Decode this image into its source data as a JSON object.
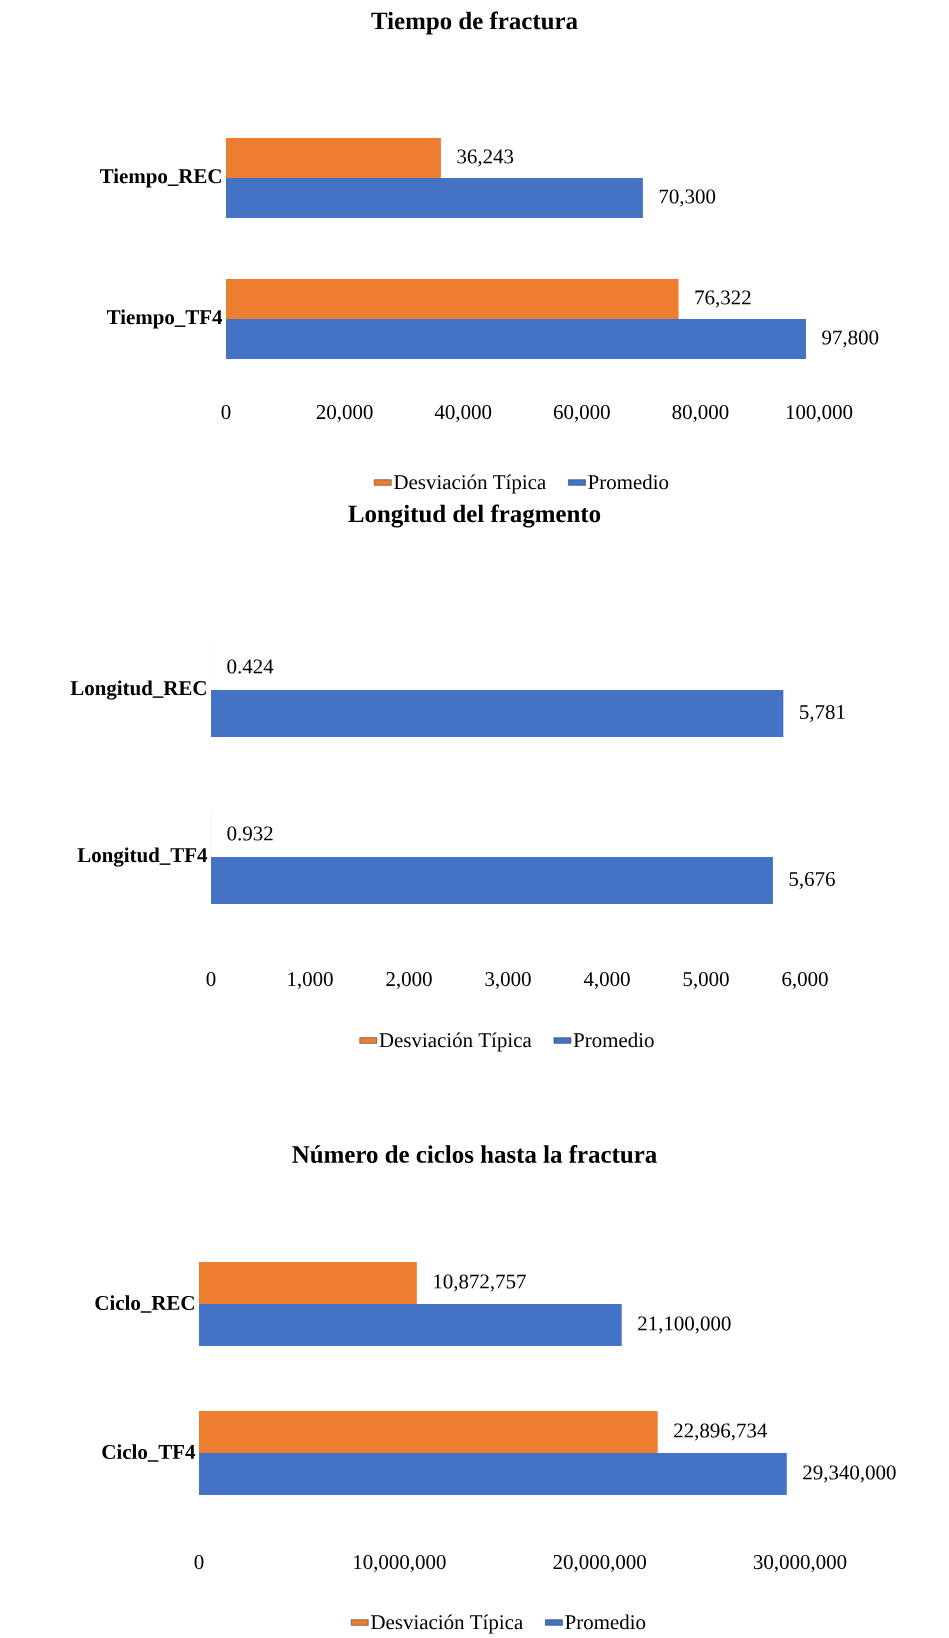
{
  "chart_data": [
    {
      "type": "bar",
      "orientation": "horizontal",
      "title": "Tiempo de fractura",
      "categories": [
        "Tiempo_REC",
        "Tiempo_TF4"
      ],
      "series": [
        {
          "name": "Desviación Típica",
          "color": "#ed7d31",
          "values": [
            36243,
            76322
          ],
          "value_labels": [
            "36,243",
            "76,322"
          ]
        },
        {
          "name": "Promedio",
          "color": "#4472c4",
          "values": [
            70300,
            97800
          ],
          "value_labels": [
            "70,300",
            "97,800"
          ]
        }
      ],
      "xlim": [
        0,
        100000
      ],
      "xticks": [
        0,
        {
          "value": 20000,
          "label": "20,000"
        },
        {
          "value": 40000,
          "label": "40,000"
        },
        {
          "value": 60000,
          "label": "60,000"
        },
        {
          "value": 80000,
          "label": "80,000"
        },
        {
          "value": 100000,
          "label": "100,000"
        }
      ],
      "legend": "bottom",
      "grid": false
    },
    {
      "type": "bar",
      "orientation": "horizontal",
      "title": "Longitud del fragmento",
      "categories": [
        "Longitud_REC",
        "Longitud_TF4"
      ],
      "series": [
        {
          "name": "Desviación Típica",
          "color": "#ed7d31",
          "values": [
            0.424,
            0.932
          ],
          "value_labels": [
            "0.424",
            "0.932"
          ]
        },
        {
          "name": "Promedio",
          "color": "#4472c4",
          "values": [
            5781,
            5676
          ],
          "value_labels": [
            "5,781",
            "5,676"
          ]
        }
      ],
      "xlim": [
        0,
        6000
      ],
      "xticks": [
        0,
        {
          "value": 1000,
          "label": "1,000"
        },
        {
          "value": 2000,
          "label": "2,000"
        },
        {
          "value": 3000,
          "label": "3,000"
        },
        {
          "value": 4000,
          "label": "4,000"
        },
        {
          "value": 5000,
          "label": "5,000"
        },
        {
          "value": 6000,
          "label": "6,000"
        }
      ],
      "legend": "bottom",
      "grid": false
    },
    {
      "type": "bar",
      "orientation": "horizontal",
      "title": "Número de ciclos hasta la fractura",
      "categories": [
        "Ciclo_REC",
        "Ciclo_TF4"
      ],
      "series": [
        {
          "name": "Desviación Típica",
          "color": "#ed7d31",
          "values": [
            10872757,
            22896734
          ],
          "value_labels": [
            "10,872,757",
            "22,896,734"
          ]
        },
        {
          "name": "Promedio",
          "color": "#4472c4",
          "values": [
            21100000,
            29340000
          ],
          "value_labels": [
            "21,100,000",
            "29,340,000"
          ]
        }
      ],
      "xlim": [
        0,
        30000000
      ],
      "xticks": [
        0,
        {
          "value": 10000000,
          "label": "10,000,000"
        },
        {
          "value": 20000000,
          "label": "20,000,000"
        },
        {
          "value": 30000000,
          "label": "30,000,000"
        }
      ],
      "legend": "bottom",
      "grid": false
    }
  ]
}
